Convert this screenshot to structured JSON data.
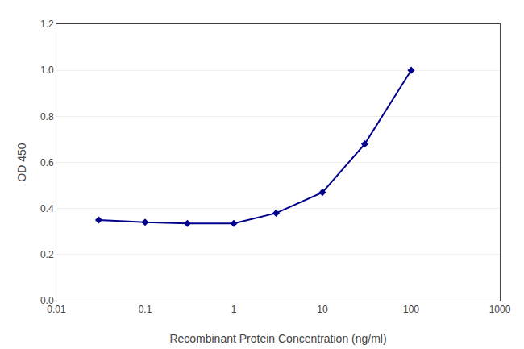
{
  "chart_data": {
    "type": "line",
    "x_label": "Recombinant Protein Concentration (ng/ml)",
    "y_label": "OD 450",
    "x": [
      0.03,
      0.1,
      0.3,
      1.0,
      3.0,
      10.0,
      30.0,
      100.0
    ],
    "values": [
      0.35,
      0.34,
      0.335,
      0.335,
      0.38,
      0.47,
      0.68,
      1.0
    ],
    "color": "#00008B",
    "marker": "diamond",
    "line_style": "solid",
    "log": "x",
    "xlim": [
      0.01,
      1000
    ],
    "xticks": [
      0.01,
      0.1,
      1,
      10,
      100,
      1000
    ],
    "ylim": [
      0.0,
      1.2
    ],
    "yticks": [
      {
        "value": 0.0,
        "label": "0.0"
      },
      0.2,
      0.4,
      0.6,
      0.8,
      {
        "value": 1.0,
        "label": "1.0"
      },
      1.2
    ],
    "grid": "y"
  }
}
